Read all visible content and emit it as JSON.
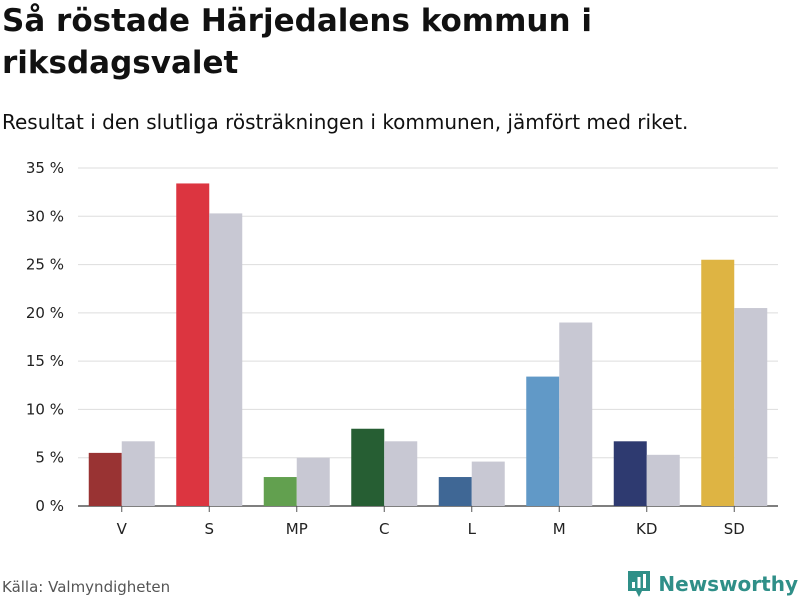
{
  "title": "Så röstade Härjedalens kommun i riksdagsvalet",
  "subtitle": "Resultat i den slutliga rösträkningen i kommunen, jämfört med riket.",
  "source": "Källa: Valmyndigheten",
  "brand": {
    "name": "Newsworthy",
    "color": "#2f8f88",
    "icon": "bar-chart-logo-icon"
  },
  "chart_data": {
    "type": "bar",
    "categories": [
      "V",
      "S",
      "MP",
      "C",
      "L",
      "M",
      "KD",
      "SD"
    ],
    "series": [
      {
        "values": [
          5.5,
          33.4,
          3.0,
          8.0,
          3.0,
          13.4,
          6.7,
          25.5
        ],
        "colors": [
          "#993333",
          "#dc3540",
          "#62a04f",
          "#265e33",
          "#3f6795",
          "#6199c7",
          "#2e3a70",
          "#deb443"
        ]
      },
      {
        "values": [
          6.7,
          30.3,
          5.0,
          6.7,
          4.6,
          19.0,
          5.3,
          20.5
        ],
        "color": "#c8c8d3"
      }
    ],
    "yticks": [
      "0 %",
      "5 %",
      "10 %",
      "15 %",
      "20 %",
      "25 %",
      "30 %",
      "35 %"
    ],
    "ylim": [
      0,
      35
    ],
    "grid": true,
    "xlabel": "",
    "ylabel": ""
  }
}
